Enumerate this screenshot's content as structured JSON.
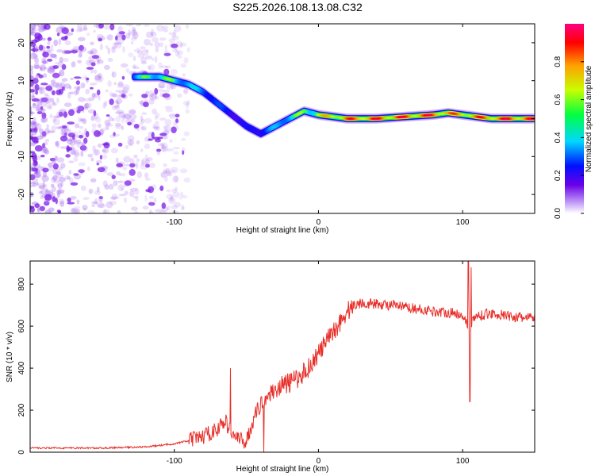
{
  "title": "S225.2026.108.13.08.C32",
  "colors": {
    "snr_line": "#e8302a",
    "scatter_noise": "#a86df0",
    "scatter_noise_dark": "#7a1ce6"
  },
  "chart_data": [
    {
      "type": "heatmap",
      "name": "spectrogram",
      "xlabel": "Height of straight line (km)",
      "ylabel": "Frequency (Hz)",
      "xlim": [
        -200,
        150
      ],
      "ylim": [
        -25,
        25
      ],
      "x_ticks": [
        -100,
        0,
        100
      ],
      "x_tick_labels": [
        "-100",
        "0",
        "100"
      ],
      "y_ticks": [
        -20,
        -10,
        0,
        10,
        20
      ],
      "y_tick_labels": [
        "-20",
        "-10",
        "0",
        "10",
        "20"
      ],
      "ridge": {
        "x": [
          -128,
          -120,
          -110,
          -100,
          -90,
          -80,
          -70,
          -60,
          -50,
          -40,
          -30,
          -20,
          -10,
          0,
          20,
          40,
          60,
          80,
          90,
          100,
          120,
          150
        ],
        "y": [
          11,
          11,
          11,
          10,
          9,
          7,
          4,
          1,
          -2,
          -4,
          -2,
          0,
          2,
          1,
          0,
          0,
          0.5,
          1,
          1.5,
          1,
          0,
          0
        ],
        "amplitude": [
          0.5,
          0.6,
          0.65,
          0.6,
          0.55,
          0.5,
          0.4,
          0.35,
          0.3,
          0.4,
          0.5,
          0.6,
          0.65,
          0.75,
          0.9,
          0.95,
          0.95,
          0.95,
          0.9,
          0.85,
          0.95,
          0.95
        ]
      },
      "noise_region_x": [
        -200,
        -90
      ],
      "colorbar": {
        "label": "Normalized spectral amplitude",
        "range": [
          0,
          1
        ],
        "ticks": [
          0,
          0.2,
          0.4,
          0.6,
          0.8
        ],
        "tick_labels": [
          "0.0",
          "0.2",
          "0.4",
          "0.6",
          "0.8"
        ]
      }
    },
    {
      "type": "line",
      "name": "snr",
      "xlabel": "Height of straight line (km)",
      "ylabel": "SNR (10 * v/v)",
      "xlim": [
        -200,
        150
      ],
      "ylim": [
        0,
        910
      ],
      "x_ticks": [
        -100,
        0,
        100
      ],
      "x_tick_labels": [
        "-100",
        "0",
        "100"
      ],
      "y_ticks": [
        0,
        200,
        400,
        600,
        800
      ],
      "y_tick_labels": [
        "0",
        "200",
        "400",
        "600",
        "800"
      ],
      "envelope_x": [
        -200,
        -150,
        -120,
        -100,
        -90,
        -80,
        -70,
        -65,
        -60,
        -55,
        -50,
        -45,
        -40,
        -35,
        -30,
        -25,
        -20,
        -15,
        -10,
        -5,
        0,
        5,
        10,
        15,
        20,
        25,
        30,
        40,
        50,
        60,
        70,
        80,
        90,
        100,
        104,
        110,
        120,
        130,
        140,
        150
      ],
      "envelope_y": [
        20,
        20,
        25,
        40,
        55,
        75,
        110,
        150,
        90,
        60,
        50,
        160,
        230,
        270,
        300,
        320,
        330,
        350,
        380,
        420,
        470,
        520,
        570,
        620,
        670,
        700,
        710,
        705,
        700,
        690,
        680,
        670,
        665,
        655,
        600,
        650,
        660,
        650,
        640,
        640
      ],
      "spikes": [
        {
          "x": -61,
          "y": 400
        },
        {
          "x": -38,
          "y": 0
        },
        {
          "x": 104,
          "y": 910
        },
        {
          "x": 105,
          "y": 240
        },
        {
          "x": 106,
          "y": 880
        }
      ],
      "amplitude_jitter": 70
    }
  ]
}
